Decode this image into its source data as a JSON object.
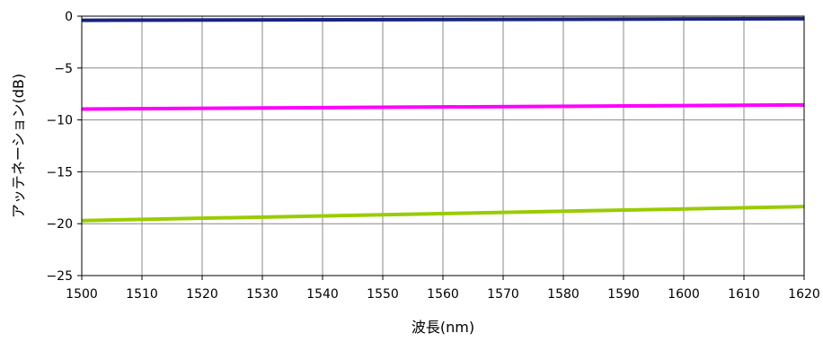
{
  "chart_data": {
    "type": "line",
    "title": "",
    "xlabel": "波長(nm)",
    "ylabel": "アッテネーション(dB)",
    "xlim": [
      1500,
      1620
    ],
    "ylim": [
      -25,
      0
    ],
    "x_ticks": [
      1500,
      1510,
      1520,
      1530,
      1540,
      1550,
      1560,
      1570,
      1580,
      1590,
      1600,
      1610,
      1620
    ],
    "y_ticks": [
      0,
      -5,
      -10,
      -15,
      -20,
      -25
    ],
    "x_tick_labels": [
      "1500",
      "1510",
      "1520",
      "1530",
      "1540",
      "1550",
      "1560",
      "1570",
      "1580",
      "1590",
      "1600",
      "1610",
      "1620"
    ],
    "y_tick_labels": [
      "0",
      "−5",
      "−10",
      "−15",
      "−20",
      "−25"
    ],
    "grid": true,
    "legend": "none",
    "series": [
      {
        "color": "#1a237e",
        "x": [
          1500,
          1620
        ],
        "y": [
          -0.4,
          -0.25
        ]
      },
      {
        "color": "#ff00ff",
        "x": [
          1500,
          1620
        ],
        "y": [
          -8.95,
          -8.55
        ]
      },
      {
        "color": "#99cc00",
        "x": [
          1500,
          1620
        ],
        "y": [
          -19.7,
          -18.35
        ]
      }
    ]
  }
}
